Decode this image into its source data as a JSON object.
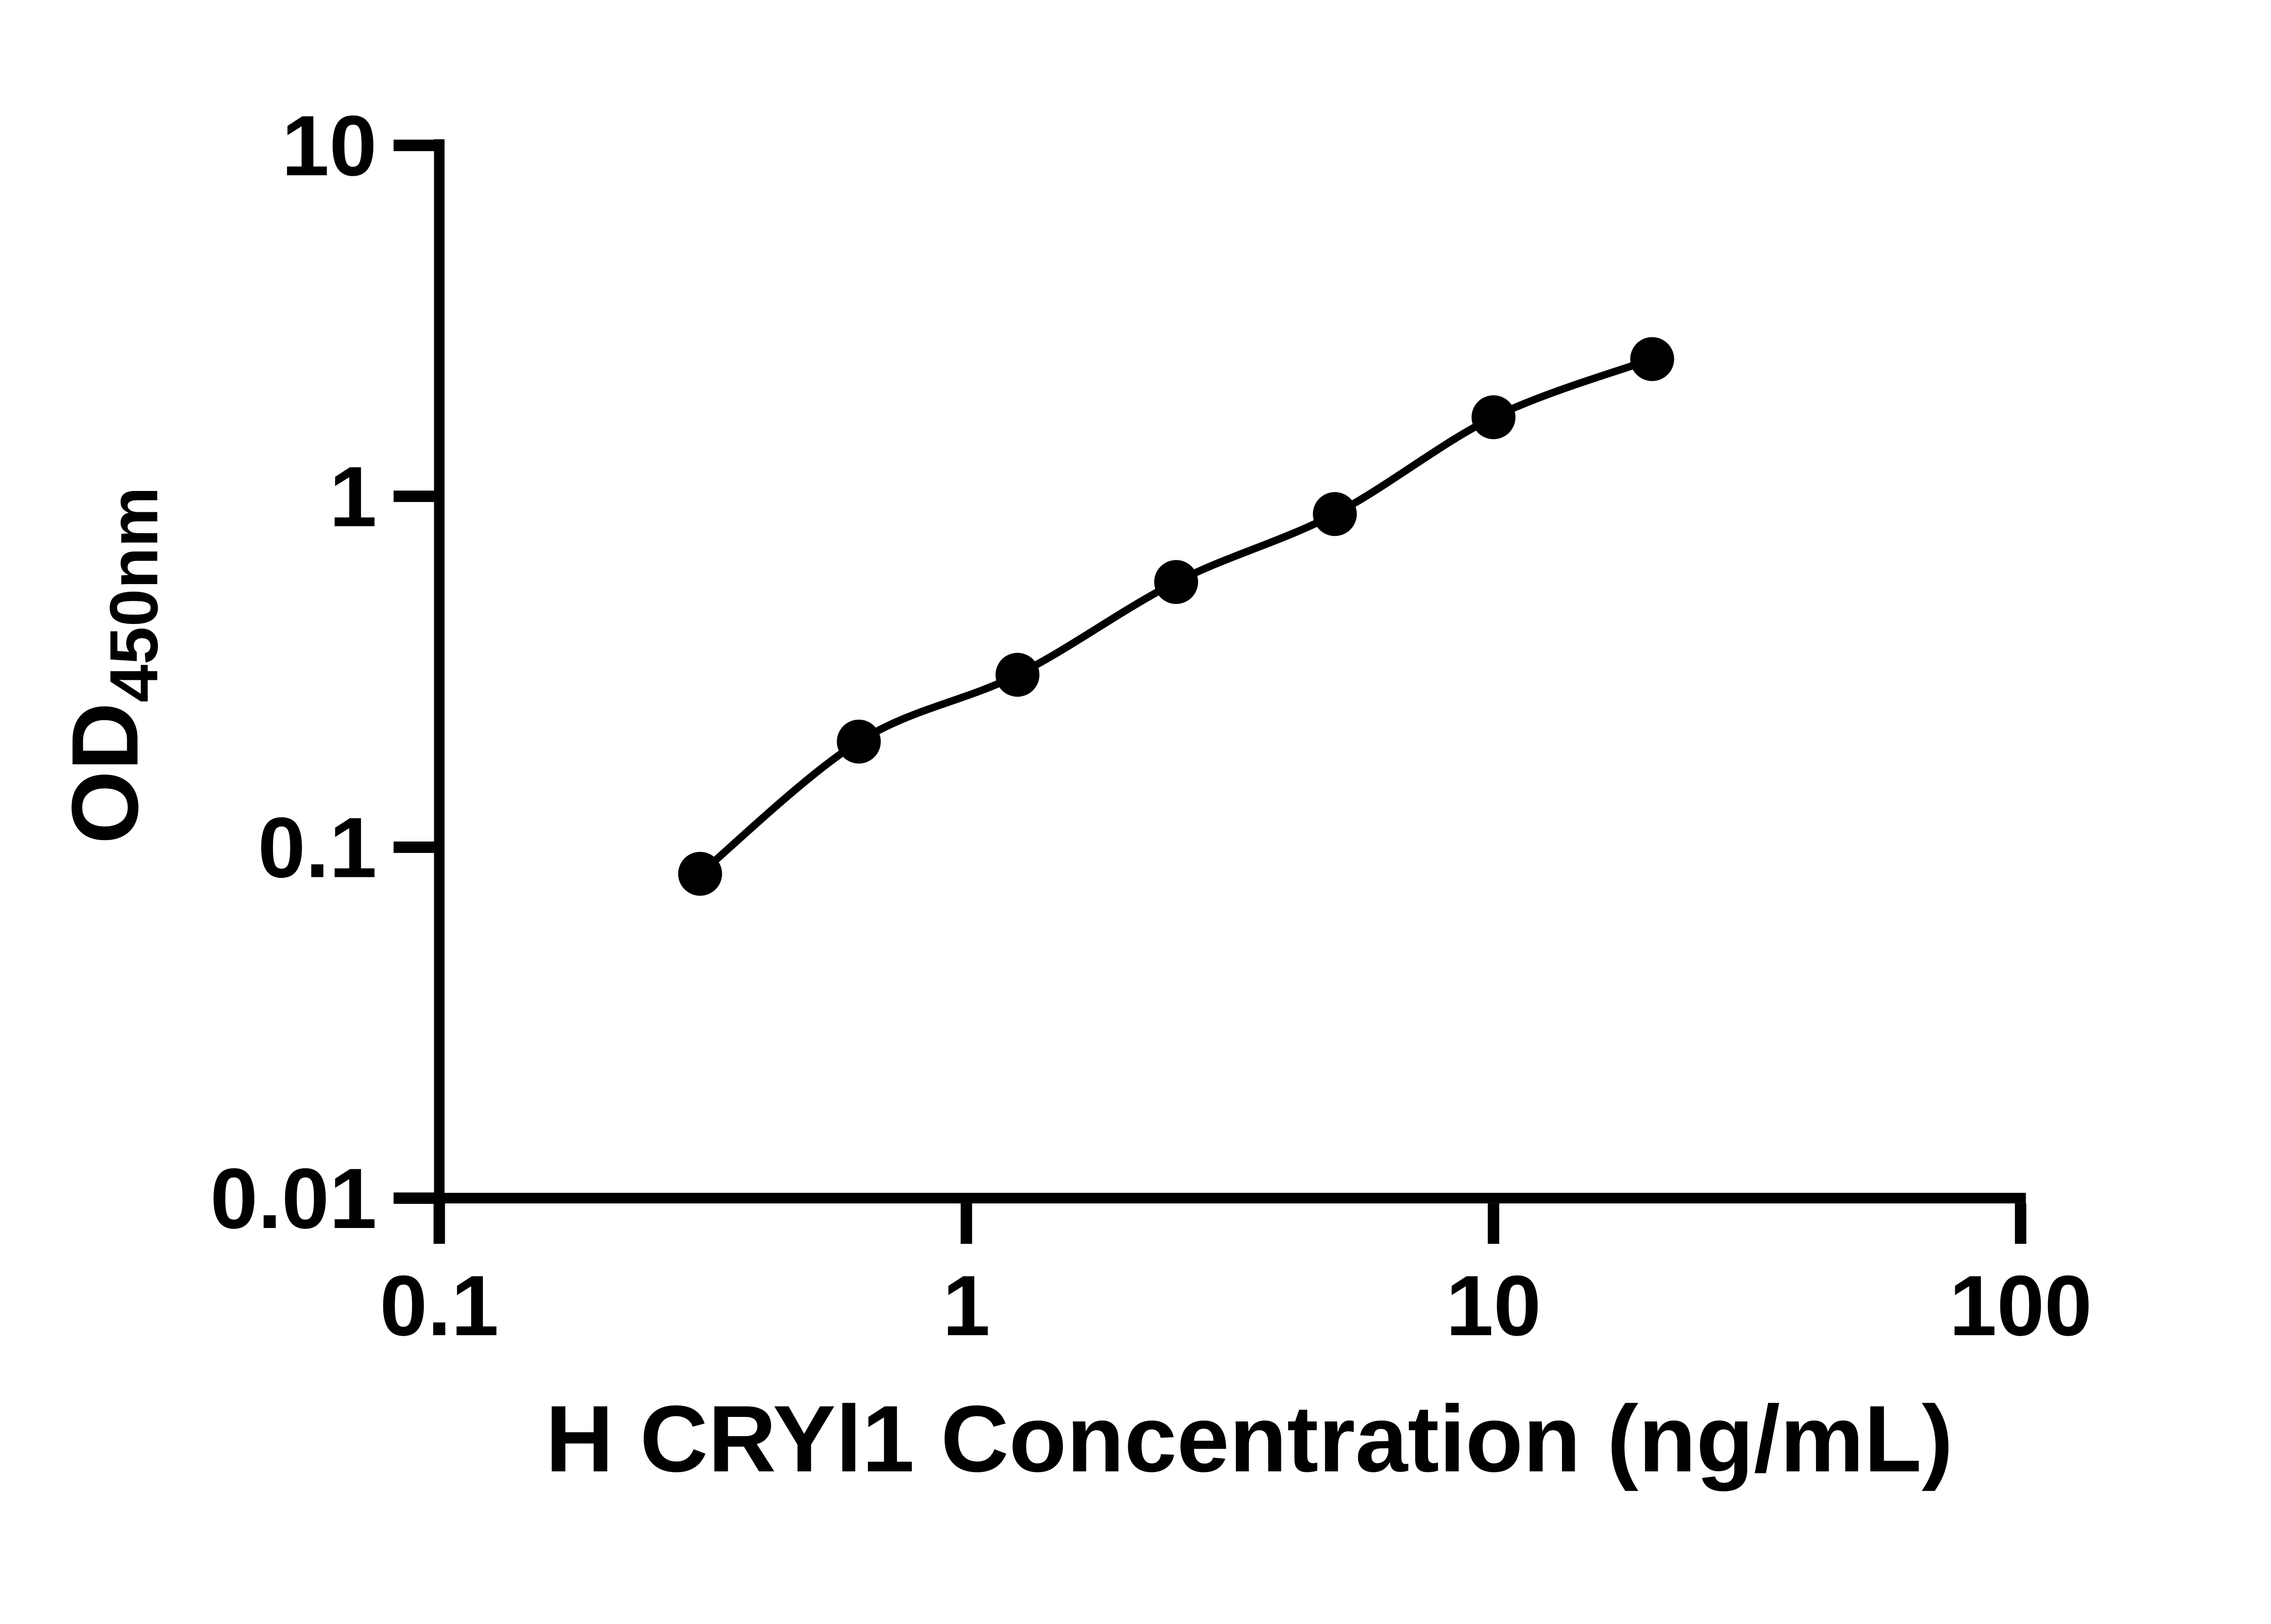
{
  "chart_data": {
    "type": "scatter",
    "title": "",
    "xlabel": "H CRYl1 Concentration (ng/mL)",
    "ylabel_main": "OD",
    "ylabel_sub": "450nm",
    "x_scale": "log",
    "y_scale": "log",
    "xlim": [
      0.1,
      100
    ],
    "ylim": [
      0.01,
      10
    ],
    "x_tick_labels": [
      "0.1",
      "1",
      "10",
      "100"
    ],
    "y_tick_labels": [
      "10",
      "1",
      "0.1",
      "0.01"
    ],
    "x_tick_values": [
      0.1,
      1,
      10,
      100
    ],
    "y_tick_values": [
      10,
      1,
      0.1,
      0.01
    ],
    "grid": false,
    "legend": "none",
    "background_color": "#ffffff",
    "axis_color": "#000000",
    "marker_color": "#000000",
    "line_color": "#000000",
    "points": [
      {
        "x": 0.3125,
        "y": 0.084
      },
      {
        "x": 0.625,
        "y": 0.2
      },
      {
        "x": 1.25,
        "y": 0.31
      },
      {
        "x": 2.5,
        "y": 0.57
      },
      {
        "x": 5,
        "y": 0.89
      },
      {
        "x": 10,
        "y": 1.68
      },
      {
        "x": 20,
        "y": 2.46
      }
    ]
  }
}
